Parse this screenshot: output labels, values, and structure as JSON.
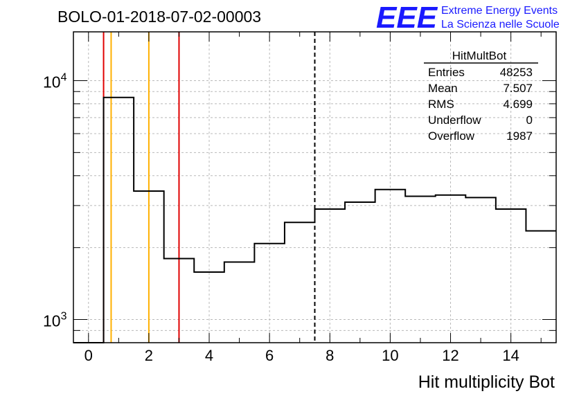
{
  "title": "BOLO-01-2018-07-02-00003",
  "logo": {
    "letters": "EEE",
    "line1": "Extreme Energy Events",
    "line2": "La Scienza nelle Scuole",
    "color": "#1a1aff"
  },
  "stats": {
    "name": "HitMultBot",
    "rows": [
      {
        "label": "Entries",
        "value": "48253"
      },
      {
        "label": "Mean",
        "value": "7.507"
      },
      {
        "label": "RMS",
        "value": "4.699"
      },
      {
        "label": "Underflow",
        "value": "0"
      },
      {
        "label": "Overflow",
        "value": "1987"
      }
    ]
  },
  "chart_data": {
    "type": "histogram",
    "title": "BOLO-01-2018-07-02-00003",
    "xlabel": "Hit multiplicity Bot",
    "ylabel": "",
    "xlim": [
      -0.5,
      15.5
    ],
    "ylim": [
      800,
      16000
    ],
    "yscale": "log",
    "grid": true,
    "bins": {
      "edges": [
        -0.5,
        0.5,
        1.5,
        2.5,
        3.5,
        4.5,
        5.5,
        6.5,
        7.5,
        8.5,
        9.5,
        10.5,
        11.5,
        12.5,
        13.5,
        14.5,
        15.5
      ],
      "counts": [
        0,
        8500,
        3450,
        1800,
        1580,
        1740,
        2080,
        2550,
        2900,
        3100,
        3500,
        3280,
        3320,
        3240,
        2900,
        2350
      ]
    },
    "x_ticks": [
      "0",
      "2",
      "4",
      "6",
      "8",
      "10",
      "12",
      "14"
    ],
    "y_ticks": [
      {
        "base": "10",
        "exp": "3",
        "value": 1000
      },
      {
        "base": "10",
        "exp": "4",
        "value": 10000
      }
    ],
    "vlines": [
      {
        "x": 0.5,
        "color": "#e00000",
        "style": "solid"
      },
      {
        "x": 0.75,
        "color": "#ffb000",
        "style": "solid"
      },
      {
        "x": 2,
        "color": "#ffb000",
        "style": "solid"
      },
      {
        "x": 3,
        "color": "#e00000",
        "style": "solid"
      },
      {
        "x": 7.5,
        "color": "#000000",
        "style": "dashed"
      }
    ]
  }
}
